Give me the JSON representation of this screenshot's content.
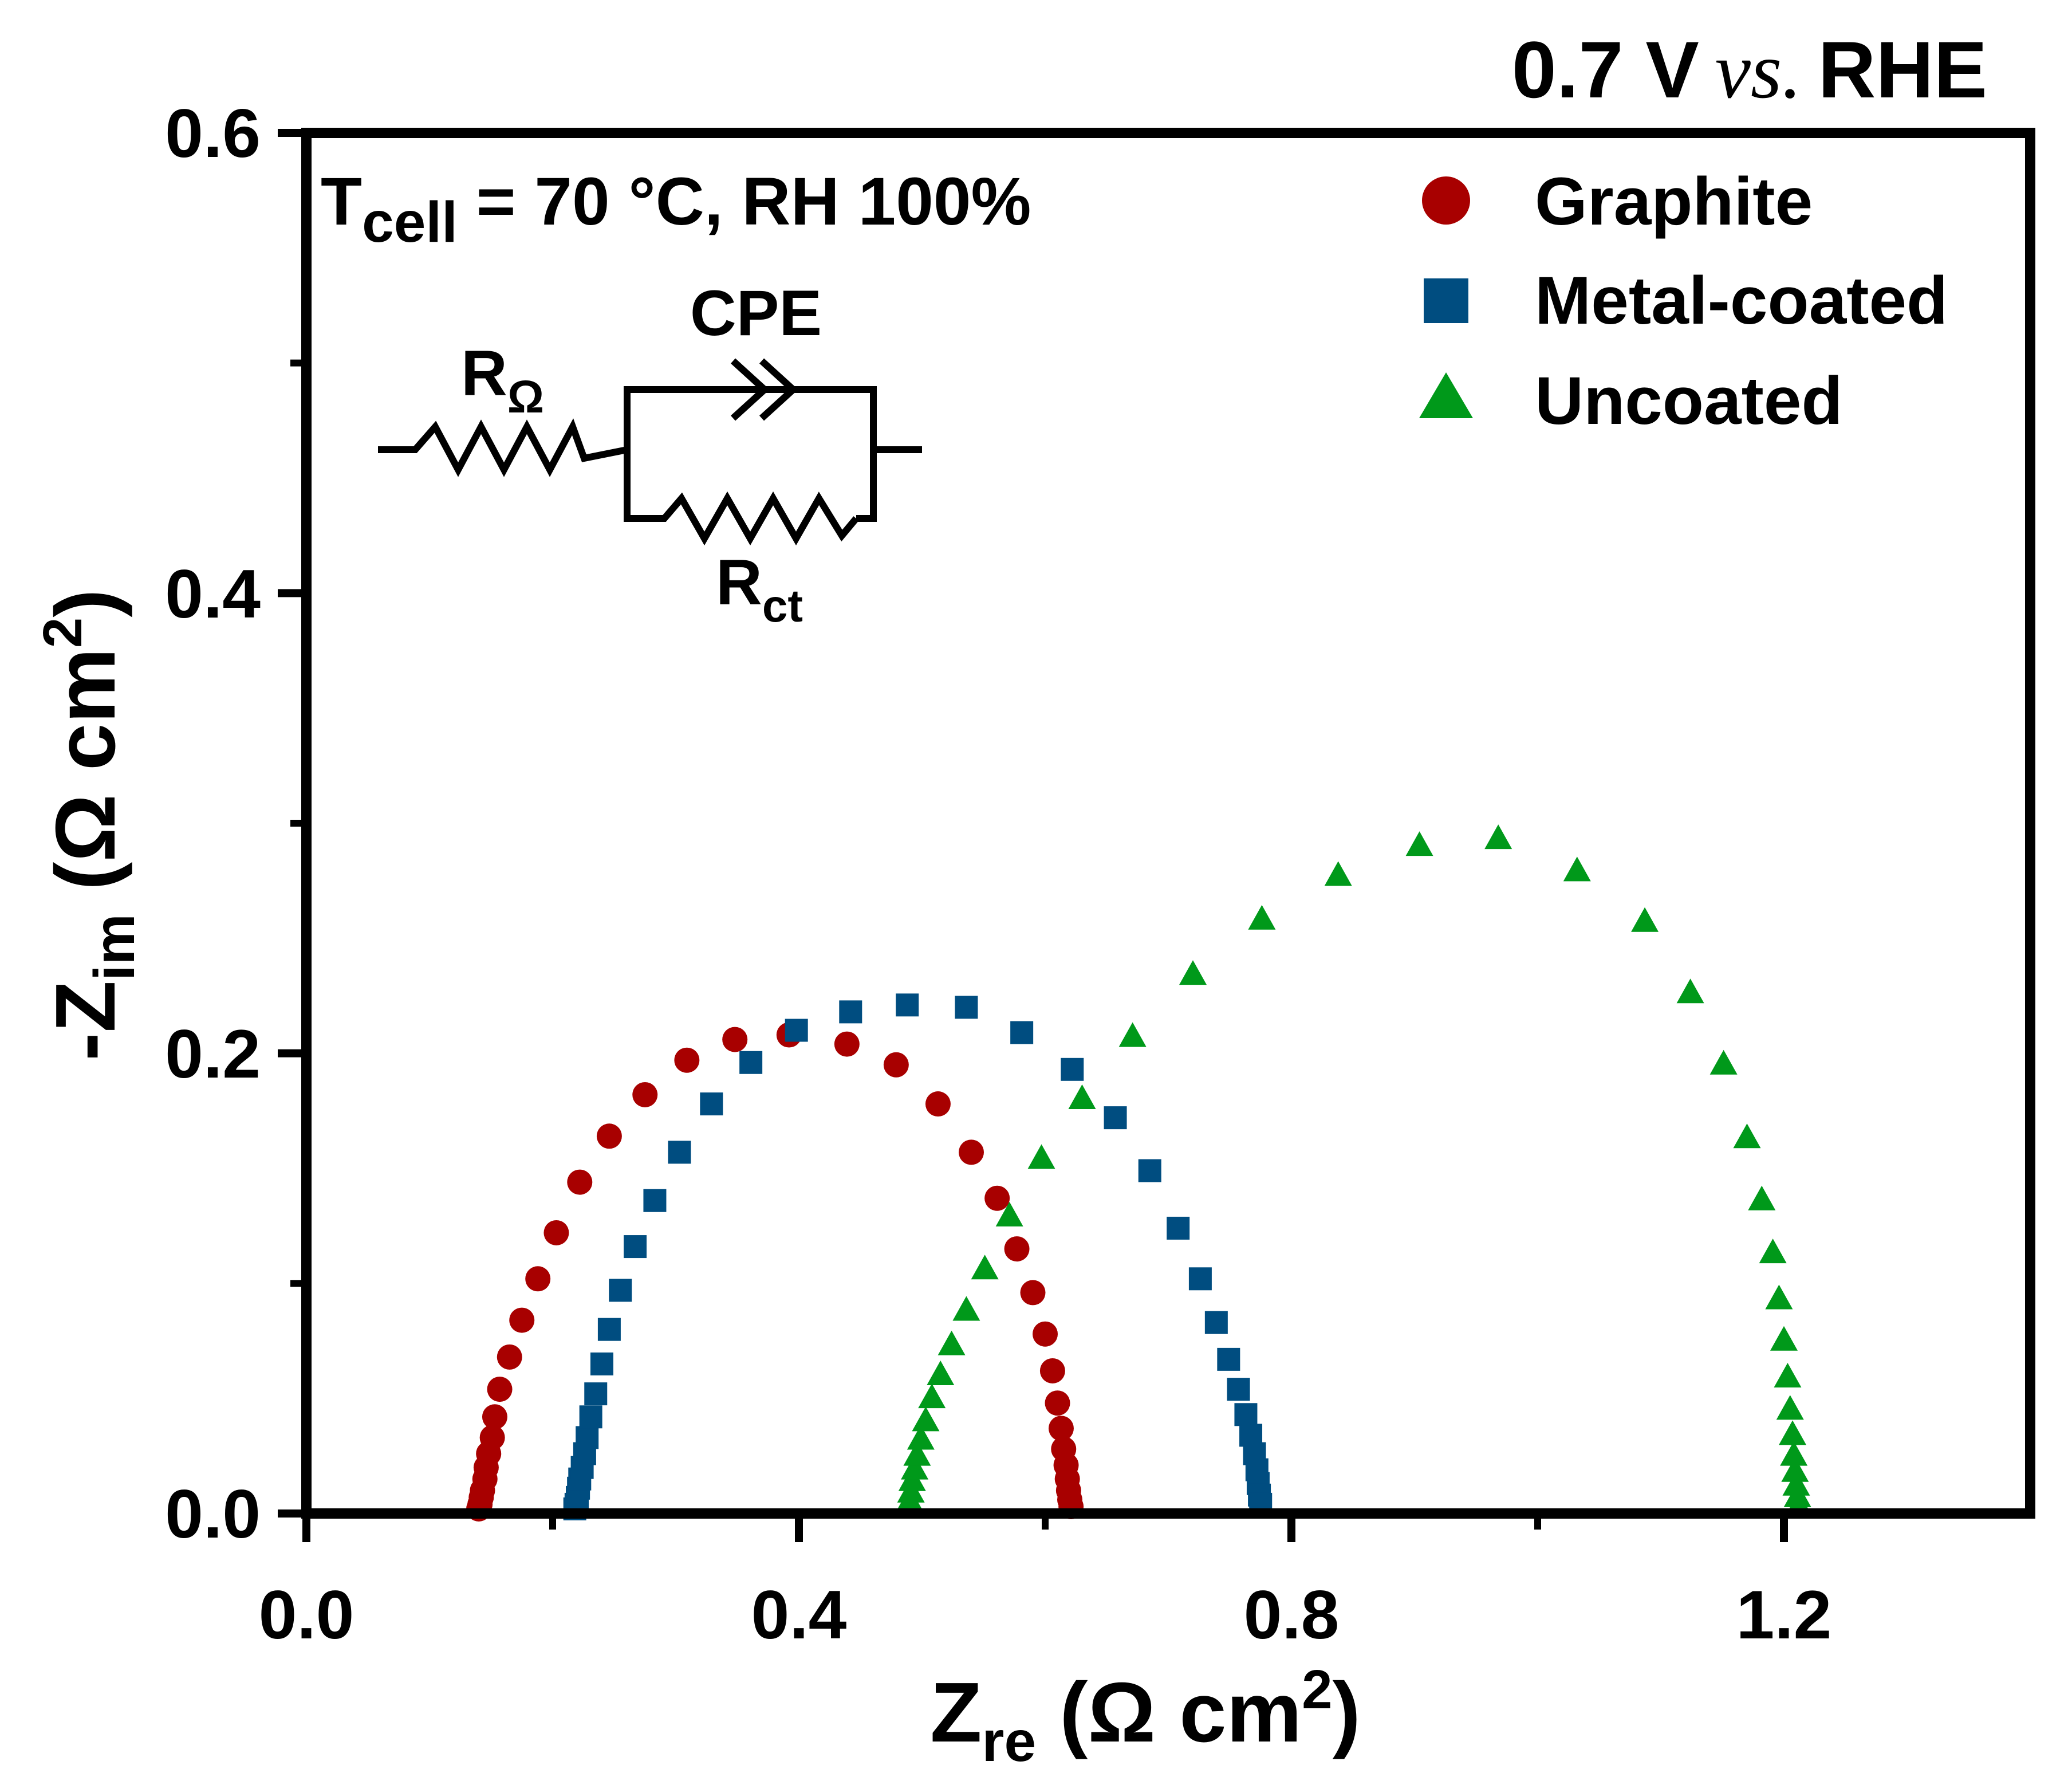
{
  "chart_data": {
    "type": "scatter",
    "title": "0.7 V vs. RHE",
    "title_main": "0.7 V",
    "title_vs": "vs.",
    "title_ref": "RHE",
    "xlabel": {
      "main": "Z",
      "sub": "re",
      "unit_open": " (Ω cm",
      "sup": "2",
      "unit_close": ")"
    },
    "ylabel": {
      "main": "-Z",
      "sub": "im",
      "unit_open": " (Ω cm",
      "sup": "2",
      "unit_close": ")"
    },
    "xlim": [
      0.0,
      1.4
    ],
    "ylim": [
      0.0,
      0.6
    ],
    "x_ticks": [
      0.0,
      0.4,
      0.8,
      1.2
    ],
    "x_tick_labels": [
      "0.0",
      "0.4",
      "0.8",
      "1.2"
    ],
    "y_ticks": [
      0.0,
      0.2,
      0.4,
      0.6
    ],
    "y_tick_labels": [
      "0.0",
      "0.2",
      "0.4",
      "0.6"
    ],
    "grid": false,
    "legend_position": "top-right",
    "annotation": {
      "main": "T",
      "sub": "cell",
      "rest": " = 70 °C, RH 100%"
    },
    "circuit": {
      "r_ohm": {
        "main": "R",
        "sub": "Ω"
      },
      "cpe": "CPE",
      "r_ct": {
        "main": "R",
        "sub": "ct"
      }
    },
    "series": [
      {
        "name": "Graphite",
        "marker": "circle",
        "color": "#a80000",
        "x": [
          0.14,
          0.141,
          0.142,
          0.143,
          0.145,
          0.146,
          0.148,
          0.151,
          0.153,
          0.157,
          0.165,
          0.175,
          0.188,
          0.203,
          0.222,
          0.246,
          0.275,
          0.309,
          0.348,
          0.392,
          0.439,
          0.479,
          0.513,
          0.54,
          0.561,
          0.577,
          0.59,
          0.6,
          0.606,
          0.61,
          0.613,
          0.615,
          0.617,
          0.618,
          0.619,
          0.62,
          0.621
        ],
        "y": [
          0.002,
          0.004,
          0.007,
          0.01,
          0.015,
          0.02,
          0.026,
          0.033,
          0.042,
          0.054,
          0.068,
          0.084,
          0.102,
          0.122,
          0.144,
          0.164,
          0.182,
          0.197,
          0.206,
          0.208,
          0.204,
          0.195,
          0.178,
          0.157,
          0.137,
          0.115,
          0.096,
          0.078,
          0.062,
          0.048,
          0.037,
          0.028,
          0.021,
          0.015,
          0.01,
          0.006,
          0.003
        ]
      },
      {
        "name": "Metal-coated",
        "marker": "square",
        "color": "#004d80",
        "x": [
          0.218,
          0.219,
          0.22,
          0.221,
          0.222,
          0.224,
          0.226,
          0.228,
          0.231,
          0.235,
          0.24,
          0.246,
          0.255,
          0.267,
          0.283,
          0.303,
          0.329,
          0.361,
          0.398,
          0.442,
          0.488,
          0.536,
          0.581,
          0.622,
          0.657,
          0.685,
          0.708,
          0.726,
          0.739,
          0.749,
          0.757,
          0.763,
          0.767,
          0.77,
          0.772,
          0.773,
          0.774,
          0.775
        ],
        "y": [
          0.002,
          0.004,
          0.007,
          0.011,
          0.015,
          0.02,
          0.026,
          0.033,
          0.042,
          0.052,
          0.065,
          0.08,
          0.097,
          0.116,
          0.136,
          0.157,
          0.178,
          0.196,
          0.21,
          0.218,
          0.221,
          0.22,
          0.209,
          0.193,
          0.172,
          0.149,
          0.124,
          0.102,
          0.083,
          0.067,
          0.054,
          0.043,
          0.034,
          0.026,
          0.019,
          0.013,
          0.008,
          0.004
        ]
      },
      {
        "name": "Uncoated",
        "marker": "triangle",
        "color": "#00991a",
        "x": [
          0.489,
          0.49,
          0.491,
          0.492,
          0.494,
          0.496,
          0.499,
          0.503,
          0.508,
          0.515,
          0.524,
          0.536,
          0.551,
          0.571,
          0.597,
          0.63,
          0.671,
          0.72,
          0.776,
          0.838,
          0.904,
          0.968,
          1.032,
          1.087,
          1.124,
          1.151,
          1.17,
          1.182,
          1.191,
          1.196,
          1.2,
          1.203,
          1.205,
          1.207,
          1.208,
          1.209,
          1.21,
          1.211,
          1.212
        ],
        "y": [
          0.002,
          0.005,
          0.009,
          0.014,
          0.019,
          0.025,
          0.032,
          0.04,
          0.05,
          0.06,
          0.073,
          0.088,
          0.106,
          0.129,
          0.154,
          0.18,
          0.207,
          0.234,
          0.258,
          0.277,
          0.29,
          0.293,
          0.279,
          0.257,
          0.226,
          0.195,
          0.163,
          0.136,
          0.113,
          0.093,
          0.075,
          0.059,
          0.045,
          0.034,
          0.025,
          0.018,
          0.012,
          0.007,
          0.003
        ]
      }
    ]
  }
}
